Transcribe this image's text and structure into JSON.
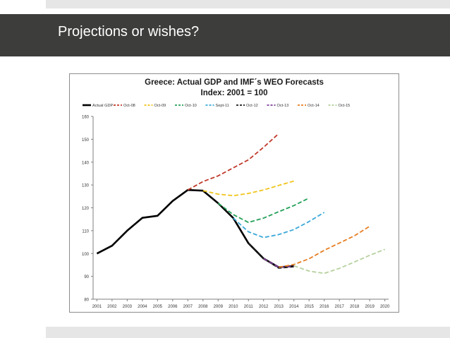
{
  "slide": {
    "title": "Projections or wishes?"
  },
  "colors": {
    "title_bar": "#3d3d3c",
    "stripe": "#e6e6e6",
    "title_text": "#ffffff"
  },
  "chart_data": {
    "type": "line",
    "title": "Greece: Actual GDP and IMF´s WEO Forecasts",
    "subtitle": "Index: 2001 = 100",
    "xlabel": "",
    "ylabel": "",
    "x": [
      "2001",
      "2002",
      "2003",
      "2004",
      "2005",
      "2006",
      "2007",
      "2008",
      "2009",
      "2010",
      "2011",
      "2012",
      "2013",
      "2014",
      "2015",
      "2016",
      "2017",
      "2018",
      "2019",
      "2020"
    ],
    "ylim": [
      80,
      160
    ],
    "yticks": [
      80,
      90,
      100,
      110,
      120,
      130,
      140,
      150,
      160
    ],
    "grid": false,
    "legend": "top",
    "series": [
      {
        "name": "Actual GDP",
        "color": "#000000",
        "dash": "solid",
        "points": [
          [
            "2001",
            100
          ],
          [
            "2002",
            103.4
          ],
          [
            "2003",
            110
          ],
          [
            "2004",
            115.6
          ],
          [
            "2005",
            116.5
          ],
          [
            "2006",
            123
          ],
          [
            "2007",
            127.8
          ],
          [
            "2008",
            127.5
          ],
          [
            "2009",
            122
          ],
          [
            "2010",
            115.5
          ],
          [
            "2011",
            104.5
          ],
          [
            "2012",
            97.8
          ],
          [
            "2013",
            94
          ],
          [
            "2014",
            94.5
          ]
        ]
      },
      {
        "name": "Oct-08",
        "color": "#c0392b",
        "dash": "dashed",
        "points": [
          [
            "2007",
            127.8
          ],
          [
            "2008",
            131.5
          ],
          [
            "2009",
            134
          ],
          [
            "2010",
            137.5
          ],
          [
            "2011",
            141
          ],
          [
            "2012",
            146.5
          ],
          [
            "2013",
            152.5
          ]
        ]
      },
      {
        "name": "Oct-09",
        "color": "#f0c419",
        "dash": "dashed",
        "points": [
          [
            "2008",
            127.5
          ],
          [
            "2009",
            126
          ],
          [
            "2010",
            125.3
          ],
          [
            "2011",
            126.3
          ],
          [
            "2012",
            127.8
          ],
          [
            "2013",
            129.8
          ],
          [
            "2014",
            131.7
          ]
        ]
      },
      {
        "name": "Oct-10",
        "color": "#27a05a",
        "dash": "dashed",
        "points": [
          [
            "2009",
            122
          ],
          [
            "2010",
            117
          ],
          [
            "2011",
            113.6
          ],
          [
            "2012",
            115.5
          ],
          [
            "2013",
            118.3
          ],
          [
            "2014",
            121
          ],
          [
            "2015",
            124.3
          ]
        ]
      },
      {
        "name": "Sept-11",
        "color": "#3aa8d8",
        "dash": "dashed",
        "points": [
          [
            "2010",
            115.5
          ],
          [
            "2011",
            109.5
          ],
          [
            "2012",
            107
          ],
          [
            "2013",
            108.3
          ],
          [
            "2014",
            110.5
          ],
          [
            "2015",
            114
          ],
          [
            "2016",
            118
          ]
        ]
      },
      {
        "name": "Oct-12",
        "color": "#1a1a1a",
        "dash": "dashed",
        "points": [
          [
            "2011",
            104.5
          ],
          [
            "2012",
            97.8
          ],
          [
            "2013",
            93.6
          ],
          [
            "2014",
            94.2
          ]
        ]
      },
      {
        "name": "Oct-13",
        "color": "#7d3c98",
        "dash": "dashed",
        "points": [
          [
            "2012",
            97.8
          ],
          [
            "2013",
            94
          ],
          [
            "2014",
            94.4
          ]
        ]
      },
      {
        "name": "Oct-14",
        "color": "#e67e22",
        "dash": "dashed",
        "points": [
          [
            "2013",
            94
          ],
          [
            "2014",
            95.2
          ],
          [
            "2015",
            97.7
          ],
          [
            "2016",
            101.4
          ],
          [
            "2017",
            104.6
          ],
          [
            "2018",
            107.8
          ],
          [
            "2019",
            111.9
          ]
        ]
      },
      {
        "name": "Oct-15",
        "color": "#b5d19e",
        "dash": "dashed",
        "points": [
          [
            "2014",
            94.6
          ],
          [
            "2015",
            92.3
          ],
          [
            "2016",
            91.3
          ],
          [
            "2017",
            93.5
          ],
          [
            "2018",
            96.3
          ],
          [
            "2019",
            99.2
          ],
          [
            "2020",
            101.8
          ]
        ]
      }
    ]
  }
}
